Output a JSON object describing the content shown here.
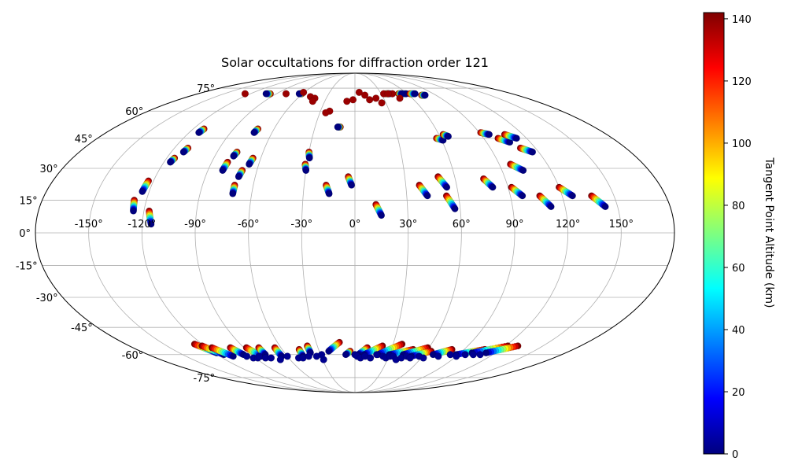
{
  "chart_data": {
    "type": "scatter",
    "projection": "mollweide",
    "title": "Solar occultations for diffraction order 121",
    "x_tick_labels": [
      "-150°",
      "-120°",
      "-90°",
      "-60°",
      "-30°",
      "0°",
      "30°",
      "60°",
      "90°",
      "120°",
      "150°"
    ],
    "x_tick_values": [
      -150,
      -120,
      -90,
      -60,
      -30,
      0,
      30,
      60,
      90,
      120,
      150
    ],
    "y_tick_labels": [
      "-75°",
      "-60°",
      "-45°",
      "-30°",
      "-15°",
      "0°",
      "15°",
      "30°",
      "45°",
      "60°",
      "75°"
    ],
    "y_tick_values": [
      -75,
      -60,
      -45,
      -30,
      -15,
      0,
      15,
      30,
      45,
      60,
      75
    ],
    "grid": true,
    "colorbar": {
      "label": "Tangent Point Altitude (km)",
      "range": [
        0,
        142
      ],
      "tick_values": [
        0,
        20,
        40,
        60,
        80,
        100,
        120,
        140
      ],
      "tick_labels": [
        "0",
        "20",
        "40",
        "60",
        "80",
        "100",
        "120",
        "140"
      ],
      "colormap": "jet",
      "colormap_stops": [
        "#00007f",
        "#0000ff",
        "#007fff",
        "#00ffff",
        "#7fff7f",
        "#ffff00",
        "#ff7f00",
        "#ff0000",
        "#7f0000"
      ]
    },
    "tracks": [
      {
        "start": [
          -127,
          15
        ],
        "end": [
          -126,
          10
        ],
        "alt_top": 142,
        "alt_bottom": 0
      },
      {
        "start": [
          -123,
          24
        ],
        "end": [
          -124,
          19
        ],
        "alt_top": 142,
        "alt_bottom": 0
      },
      {
        "start": [
          -117,
          10
        ],
        "end": [
          -115,
          4
        ],
        "alt_top": 142,
        "alt_bottom": 0
      },
      {
        "start": [
          -115,
          35
        ],
        "end": [
          -116,
          33
        ],
        "alt_top": 142,
        "alt_bottom": 0
      },
      {
        "start": [
          -111,
          40
        ],
        "end": [
          -112,
          38
        ],
        "alt_top": 142,
        "alt_bottom": 0
      },
      {
        "start": [
          -112,
          50
        ],
        "end": [
          -113,
          48
        ],
        "alt_top": 142,
        "alt_bottom": 0
      },
      {
        "start": [
          -80,
          33
        ],
        "end": [
          -81,
          29
        ],
        "alt_top": 142,
        "alt_bottom": 0
      },
      {
        "start": [
          -77,
          38
        ],
        "end": [
          -78,
          36
        ],
        "alt_top": 142,
        "alt_bottom": 0
      },
      {
        "start": [
          -72,
          50
        ],
        "end": [
          -73,
          48
        ],
        "alt_top": 142,
        "alt_bottom": 0
      },
      {
        "start": [
          -71,
          22
        ],
        "end": [
          -71,
          18
        ],
        "alt_top": 142,
        "alt_bottom": 0
      },
      {
        "start": [
          -69,
          29
        ],
        "end": [
          -70,
          26
        ],
        "alt_top": 142,
        "alt_bottom": 0
      },
      {
        "start": [
          -65,
          35
        ],
        "end": [
          -66,
          32
        ],
        "alt_top": 142,
        "alt_bottom": 0
      },
      {
        "start": [
          -30,
          38
        ],
        "end": [
          -29,
          35
        ],
        "alt_top": 142,
        "alt_bottom": 0
      },
      {
        "start": [
          -31,
          32
        ],
        "end": [
          -30,
          29
        ],
        "alt_top": 142,
        "alt_bottom": 0
      },
      {
        "start": [
          -17,
          22
        ],
        "end": [
          -15,
          18
        ],
        "alt_top": 142,
        "alt_bottom": 0
      },
      {
        "start": [
          -4,
          26
        ],
        "end": [
          -2,
          22
        ],
        "alt_top": 142,
        "alt_bottom": 0
      },
      {
        "start": [
          12,
          13
        ],
        "end": [
          15,
          8
        ],
        "alt_top": 142,
        "alt_bottom": 0
      },
      {
        "start": [
          38,
          22
        ],
        "end": [
          42,
          17
        ],
        "alt_top": 142,
        "alt_bottom": 0
      },
      {
        "start": [
          50,
          26
        ],
        "end": [
          54,
          21
        ],
        "alt_top": 142,
        "alt_bottom": 0
      },
      {
        "start": [
          53,
          17
        ],
        "end": [
          57,
          11
        ],
        "alt_top": 142,
        "alt_bottom": 0
      },
      {
        "start": [
          77,
          25
        ],
        "end": [
          81,
          21
        ],
        "alt_top": 142,
        "alt_bottom": 0
      },
      {
        "start": [
          92,
          21
        ],
        "end": [
          97,
          17
        ],
        "alt_top": 142,
        "alt_bottom": 0
      },
      {
        "start": [
          97,
          32
        ],
        "end": [
          103,
          29
        ],
        "alt_top": 142,
        "alt_bottom": 0
      },
      {
        "start": [
          107,
          17
        ],
        "end": [
          112,
          12
        ],
        "alt_top": 142,
        "alt_bottom": 0
      },
      {
        "start": [
          120,
          21
        ],
        "end": [
          126,
          17
        ],
        "alt_top": 142,
        "alt_bottom": 0
      },
      {
        "start": [
          137,
          17
        ],
        "end": [
          143,
          12
        ],
        "alt_top": 142,
        "alt_bottom": 0
      },
      {
        "start": [
          57,
          45
        ],
        "end": [
          61,
          44
        ],
        "alt_top": 142,
        "alt_bottom": 0
      },
      {
        "start": [
          63,
          47
        ],
        "end": [
          66,
          46
        ],
        "alt_top": 142,
        "alt_bottom": 0
      },
      {
        "start": [
          91,
          48
        ],
        "end": [
          96,
          47
        ],
        "alt_top": 142,
        "alt_bottom": 0
      },
      {
        "start": [
          100,
          45
        ],
        "end": [
          106,
          43
        ],
        "alt_top": 142,
        "alt_bottom": 0
      },
      {
        "start": [
          107,
          47
        ],
        "end": [
          113,
          45
        ],
        "alt_top": 142,
        "alt_bottom": 0
      },
      {
        "start": [
          110,
          40
        ],
        "end": [
          116,
          38
        ],
        "alt_top": 142,
        "alt_bottom": 0
      },
      {
        "start": [
          -97,
          71
        ],
        "end": [
          -102,
          71
        ],
        "alt_top": 142,
        "alt_bottom": 0
      },
      {
        "start": [
          -61,
          71
        ],
        "end": [
          -64,
          71
        ],
        "alt_top": 142,
        "alt_bottom": 0
      },
      {
        "start": [
          -11,
          51
        ],
        "end": [
          -13,
          51
        ],
        "alt_top": 142,
        "alt_bottom": 0
      },
      {
        "start": [
          35,
          71
        ],
        "end": [
          40,
          71
        ],
        "alt_top": 142,
        "alt_bottom": 0
      },
      {
        "start": [
          53,
          71
        ],
        "end": [
          59,
          71
        ],
        "alt_top": 142,
        "alt_bottom": 0
      },
      {
        "start": [
          63,
          71
        ],
        "end": [
          69,
          71
        ],
        "alt_top": 142,
        "alt_bottom": 0
      },
      {
        "start": [
          74,
          70
        ],
        "end": [
          78,
          70
        ],
        "alt_top": 142,
        "alt_bottom": 0
      },
      {
        "start": [
          50,
          71
        ],
        "end": [
          54,
          71
        ],
        "alt_top": 142,
        "alt_bottom": 0
      },
      {
        "start": [
          -126,
          -54
        ],
        "end": [
          -118,
          -59
        ],
        "alt_top": 142,
        "alt_bottom": 0
      },
      {
        "start": [
          -122,
          -55
        ],
        "end": [
          -114,
          -60
        ],
        "alt_top": 142,
        "alt_bottom": 0
      },
      {
        "start": [
          -116,
          -56
        ],
        "end": [
          -108,
          -61
        ],
        "alt_top": 142,
        "alt_bottom": 0
      },
      {
        "start": [
          -101,
          -56
        ],
        "end": [
          -97,
          -60
        ],
        "alt_top": 142,
        "alt_bottom": 0
      },
      {
        "start": [
          -88,
          -56
        ],
        "end": [
          -83,
          -61
        ],
        "alt_top": 142,
        "alt_bottom": 0
      },
      {
        "start": [
          -78,
          -56
        ],
        "end": [
          -78,
          -60
        ],
        "alt_top": 142,
        "alt_bottom": 0
      },
      {
        "start": [
          -65,
          -56
        ],
        "end": [
          -65,
          -61
        ],
        "alt_top": 142,
        "alt_bottom": 0
      },
      {
        "start": [
          -46,
          -57
        ],
        "end": [
          -46,
          -61
        ],
        "alt_top": 142,
        "alt_bottom": 0
      },
      {
        "start": [
          -38,
          -55
        ],
        "end": [
          -38,
          -59
        ],
        "alt_top": 142,
        "alt_bottom": 0
      },
      {
        "start": [
          -12,
          -53
        ],
        "end": [
          -22,
          -58
        ],
        "alt_top": 142,
        "alt_bottom": 0
      },
      {
        "start": [
          -4,
          -58
        ],
        "end": [
          -8,
          -60
        ],
        "alt_top": 142,
        "alt_bottom": 0
      },
      {
        "start": [
          10,
          -56
        ],
        "end": [
          3,
          -60
        ],
        "alt_top": 142,
        "alt_bottom": 0
      },
      {
        "start": [
          22,
          -55
        ],
        "end": [
          8,
          -60
        ],
        "alt_top": 142,
        "alt_bottom": 0
      },
      {
        "start": [
          37,
          -54
        ],
        "end": [
          20,
          -60
        ],
        "alt_top": 142,
        "alt_bottom": 0
      },
      {
        "start": [
          48,
          -57
        ],
        "end": [
          30,
          -60
        ],
        "alt_top": 142,
        "alt_bottom": 0
      },
      {
        "start": [
          59,
          -56
        ],
        "end": [
          42,
          -60
        ],
        "alt_top": 142,
        "alt_bottom": 0
      },
      {
        "start": [
          64,
          -58
        ],
        "end": [
          50,
          -61
        ],
        "alt_top": 142,
        "alt_bottom": 0
      },
      {
        "start": [
          80,
          -57
        ],
        "end": [
          68,
          -60
        ],
        "alt_top": 142,
        "alt_bottom": 0
      },
      {
        "start": [
          107,
          -57
        ],
        "end": [
          88,
          -60
        ],
        "alt_top": 142,
        "alt_bottom": 0
      },
      {
        "start": [
          122,
          -55
        ],
        "end": [
          100,
          -59
        ],
        "alt_top": 142,
        "alt_bottom": 0
      },
      {
        "start": [
          130,
          -55
        ],
        "end": [
          112,
          -59
        ],
        "alt_top": 142,
        "alt_bottom": 0
      }
    ],
    "point_groups": [
      {
        "color": "#9a0000",
        "points": [
          [
            -126,
            71
          ],
          [
            -79,
            71
          ],
          [
            -61,
            72
          ],
          [
            -48,
            69
          ],
          [
            -42,
            68
          ],
          [
            -42,
            66
          ],
          [
            -22,
            60
          ],
          [
            -25,
            59
          ],
          [
            -8,
            66
          ],
          [
            5,
            72
          ],
          [
            -2,
            67
          ],
          [
            11,
            70
          ],
          [
            15,
            67
          ],
          [
            22,
            68
          ],
          [
            26,
            65
          ],
          [
            33,
            71
          ],
          [
            43,
            71
          ],
          [
            38,
            71
          ],
          [
            47,
            68
          ]
        ]
      },
      {
        "color": "#000090",
        "points": [
          [
            -96,
            -61
          ],
          [
            -92,
            -62
          ],
          [
            -88,
            -62
          ],
          [
            -85,
            -61
          ],
          [
            -81,
            -62
          ],
          [
            -76,
            -62
          ],
          [
            -69,
            -63
          ],
          [
            -60,
            -61
          ],
          [
            -51,
            -62
          ],
          [
            -47,
            -62
          ],
          [
            -41,
            -61
          ],
          [
            -34,
            -61
          ],
          [
            -29,
            -63
          ],
          [
            -29,
            -60
          ],
          [
            0,
            -60
          ],
          [
            2,
            -61
          ],
          [
            5,
            -62
          ],
          [
            9,
            -61
          ],
          [
            14,
            -62
          ],
          [
            19,
            -60
          ],
          [
            25,
            -61
          ],
          [
            28,
            -62
          ],
          [
            31,
            -61
          ],
          [
            34,
            -61
          ],
          [
            38,
            -63
          ],
          [
            42,
            -62
          ],
          [
            46,
            -61
          ],
          [
            50,
            -62
          ],
          [
            57,
            -61
          ],
          [
            62,
            -62
          ],
          [
            74,
            -61
          ],
          [
            83,
            -60
          ],
          [
            90,
            -61
          ],
          [
            96,
            -60
          ],
          [
            103,
            -60
          ],
          [
            109,
            -60
          ]
        ]
      }
    ]
  }
}
